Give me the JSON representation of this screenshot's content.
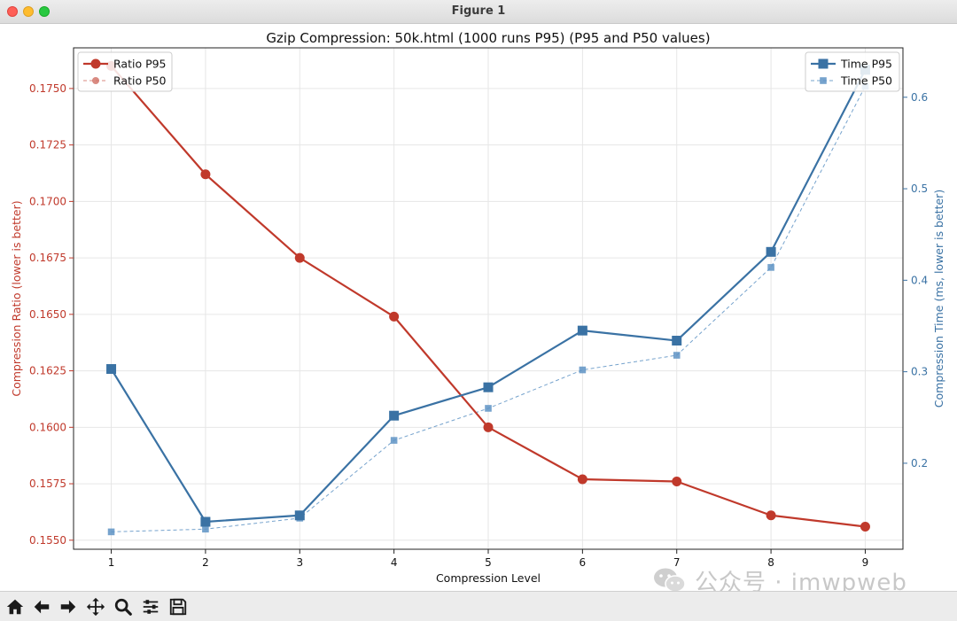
{
  "window": {
    "title": "Figure 1"
  },
  "watermark": {
    "text": "公众号 · imwpweb"
  },
  "toolbar": {
    "tools": [
      "home-icon",
      "back-arrow-icon",
      "forward-arrow-icon",
      "pan-icon",
      "zoom-icon",
      "configure-subplots-icon",
      "save-icon"
    ]
  },
  "colors": {
    "ratio": "#c0392b",
    "time": "#3a72a4"
  },
  "chart_data": {
    "type": "line",
    "title": "Gzip Compression: 50k.html (1000 runs P95) (P95 and P50 values)",
    "xlabel": "Compression Level",
    "ylabel_left": "Compression Ratio (lower is better)",
    "ylabel_right": "Compression Time (ms, lower is better)",
    "x": [
      1,
      2,
      3,
      4,
      5,
      6,
      7,
      8,
      9
    ],
    "xticks": [
      "1",
      "2",
      "3",
      "4",
      "5",
      "6",
      "7",
      "8",
      "9"
    ],
    "xlim": [
      0.6,
      9.4
    ],
    "ylim_left": [
      0.1546,
      0.1768
    ],
    "ylim_right": [
      0.106,
      0.654
    ],
    "yticks_left": [
      "0.1550",
      "0.1575",
      "0.1600",
      "0.1625",
      "0.1650",
      "0.1675",
      "0.1700",
      "0.1725",
      "0.1750"
    ],
    "yticks_right": [
      "0.2",
      "0.3",
      "0.4",
      "0.5",
      "0.6"
    ],
    "grid": true,
    "series": [
      {
        "name": "Ratio P95",
        "axis": "left",
        "marker": "circle",
        "style": "solid",
        "values": [
          0.176,
          0.1712,
          0.1675,
          0.1649,
          0.16,
          0.1577,
          0.1576,
          0.1561,
          0.1556
        ]
      },
      {
        "name": "Ratio P50",
        "axis": "left",
        "marker": "circle",
        "style": "dashed",
        "values": [
          0.176,
          0.1712,
          0.1675,
          0.1649,
          0.16,
          0.1577,
          0.1576,
          0.1561,
          0.1556
        ]
      },
      {
        "name": "Time P95",
        "axis": "right",
        "marker": "square",
        "style": "solid",
        "values": [
          0.303,
          0.136,
          0.143,
          0.252,
          0.283,
          0.345,
          0.334,
          0.431,
          0.63
        ]
      },
      {
        "name": "Time P50",
        "axis": "right",
        "marker": "square",
        "style": "dashed",
        "values": [
          0.125,
          0.128,
          0.14,
          0.225,
          0.26,
          0.302,
          0.318,
          0.414,
          0.612
        ]
      }
    ],
    "legend_left": {
      "placement": "upper-left",
      "entries": [
        "Ratio P95",
        "Ratio P50"
      ]
    },
    "legend_right": {
      "placement": "upper-right",
      "entries": [
        "Time P95",
        "Time P50"
      ]
    }
  }
}
